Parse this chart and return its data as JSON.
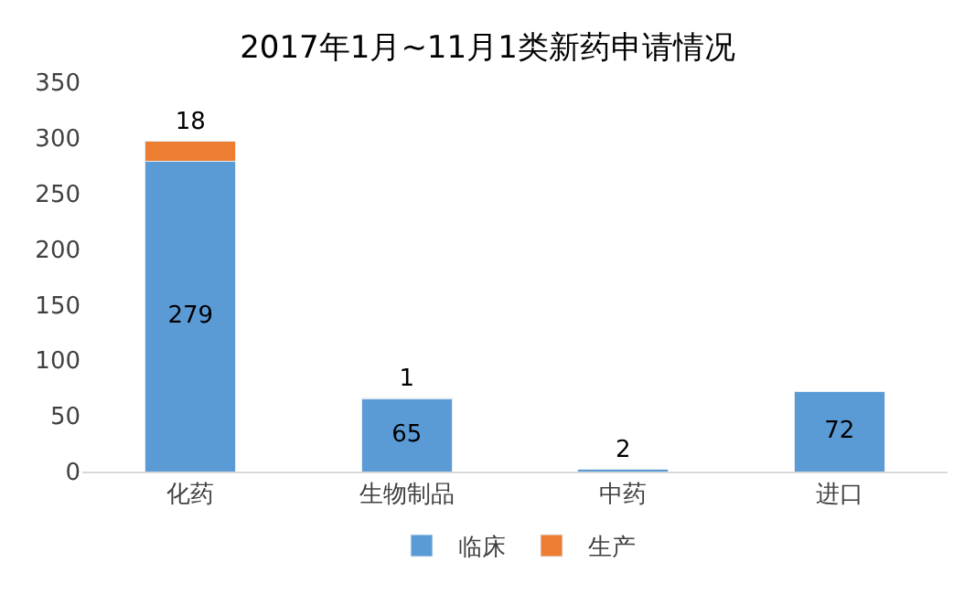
{
  "chart_data": {
    "type": "bar",
    "title": "2017年1月~11月1类新药申请情况",
    "categories": [
      "化药",
      "生物制品",
      "中药",
      "进口"
    ],
    "series": [
      {
        "name": "临床",
        "color": "#5b9bd5",
        "values": [
          279,
          65,
          2,
          72
        ]
      },
      {
        "name": "生产",
        "color": "#ed7d31",
        "values": [
          18,
          1,
          null,
          null
        ]
      }
    ],
    "stacked": true,
    "data_labels": true,
    "ylim": [
      0,
      350
    ],
    "yticks": [
      0,
      50,
      100,
      150,
      200,
      250,
      300,
      350
    ],
    "legend": "bottom"
  }
}
